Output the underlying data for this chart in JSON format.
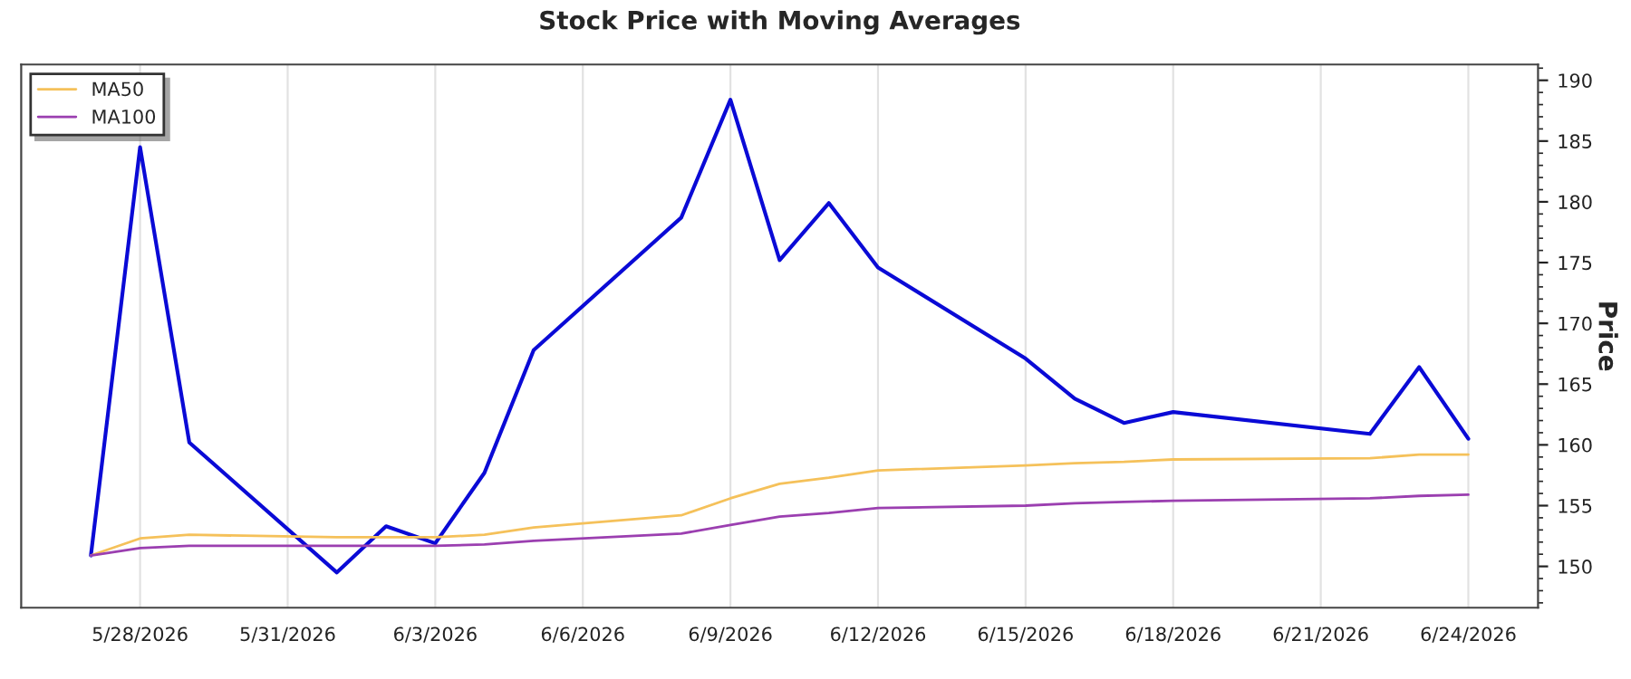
{
  "chart_data": {
    "type": "line",
    "title": "Stock Price with Moving Averages",
    "ylabel": "Price",
    "x": [
      "2026-05-27",
      "2026-05-28",
      "2026-05-29",
      "2026-06-01",
      "2026-06-02",
      "2026-06-03",
      "2026-06-04",
      "2026-06-05",
      "2026-06-08",
      "2026-06-09",
      "2026-06-10",
      "2026-06-11",
      "2026-06-12",
      "2026-06-15",
      "2026-06-16",
      "2026-06-17",
      "2026-06-18",
      "2026-06-22",
      "2026-06-23",
      "2026-06-24"
    ],
    "series": [
      {
        "color": "#0a0ad6",
        "values": [
          150.9,
          184.5,
          160.2,
          149.5,
          153.3,
          151.9,
          157.7,
          167.8,
          178.7,
          188.4,
          175.2,
          179.9,
          174.6,
          167.1,
          163.8,
          161.8,
          162.7,
          160.9,
          166.4,
          160.5
        ]
      },
      {
        "name": "MA50",
        "color": "#f5c15a",
        "values": [
          150.9,
          152.3,
          152.6,
          152.4,
          152.4,
          152.4,
          152.6,
          153.2,
          154.2,
          155.6,
          156.8,
          157.3,
          157.9,
          158.3,
          158.5,
          158.6,
          158.8,
          158.9,
          159.2,
          159.2
        ]
      },
      {
        "name": "MA100",
        "color": "#9b3fb0",
        "values": [
          150.9,
          151.5,
          151.7,
          151.7,
          151.7,
          151.7,
          151.8,
          152.1,
          152.7,
          153.4,
          154.1,
          154.4,
          154.8,
          155.0,
          155.2,
          155.3,
          155.4,
          155.6,
          155.8,
          155.9
        ]
      }
    ],
    "xlim": [
      "2026-05-25T14:00",
      "2026-06-25T10:00"
    ],
    "xticks": [
      {
        "value": "2026-05-28",
        "label": "5/28/2026"
      },
      {
        "value": "2026-05-31",
        "label": "5/31/2026"
      },
      {
        "value": "2026-06-03",
        "label": "6/3/2026"
      },
      {
        "value": "2026-06-06",
        "label": "6/6/2026"
      },
      {
        "value": "2026-06-09",
        "label": "6/9/2026"
      },
      {
        "value": "2026-06-12",
        "label": "6/12/2026"
      },
      {
        "value": "2026-06-15",
        "label": "6/15/2026"
      },
      {
        "value": "2026-06-18",
        "label": "6/18/2026"
      },
      {
        "value": "2026-06-21",
        "label": "6/21/2026"
      },
      {
        "value": "2026-06-24",
        "label": "6/24/2026"
      }
    ],
    "ylim": [
      146.6,
      191.3
    ],
    "yticks": [
      150,
      155,
      160,
      165,
      170,
      175,
      180,
      185,
      190
    ],
    "grid": "x",
    "legend": "top left",
    "marker": "none",
    "line_style": "solid"
  }
}
